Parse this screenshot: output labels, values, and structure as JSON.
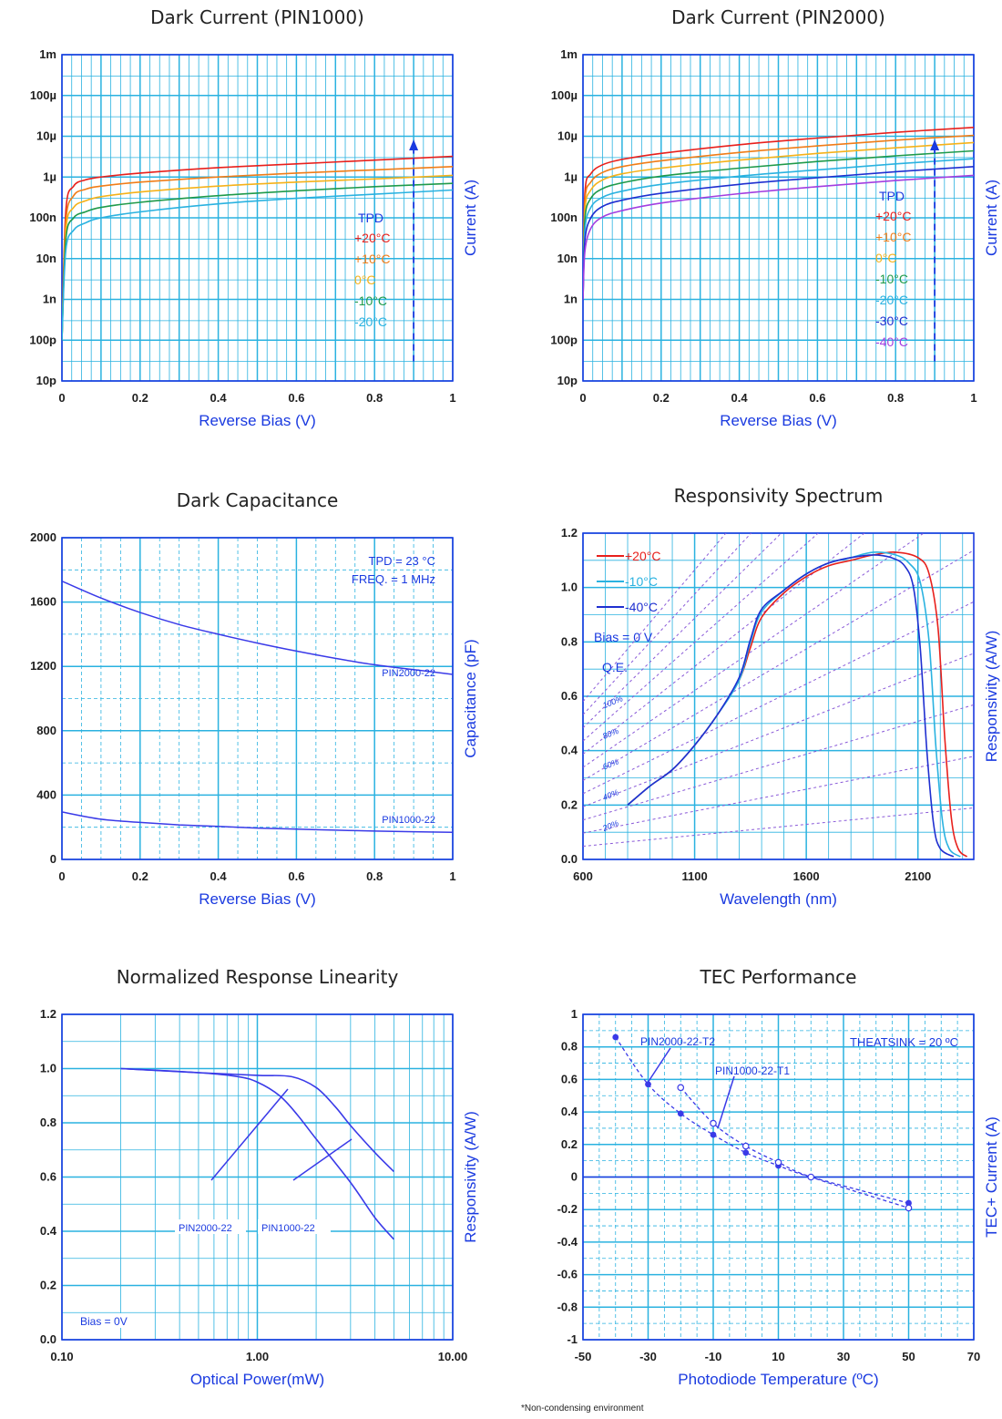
{
  "footnote": "*Non-condensing environment",
  "chart_data": [
    {
      "id": "c1",
      "type": "line",
      "title": "Dark Current (PIN1000)",
      "xlabel": "Reverse Bias (V)",
      "ylabel": "Current (A)",
      "xlim": [
        0,
        1
      ],
      "ylim": [
        1e-11,
        0.001
      ],
      "yscale": "log",
      "grid": true,
      "x_ticks": [
        "0",
        "0.2",
        "0.4",
        "0.6",
        "0.8",
        "1"
      ],
      "y_ticks": [
        "10p",
        "100p",
        "1n",
        "10n",
        "100n",
        "1µ",
        "10µ",
        "100µ",
        "1m"
      ],
      "legend_title": "TPD",
      "arrow_x": 0.9,
      "series": [
        {
          "name": "+20°C",
          "color": "#e8201c",
          "x": [
            0.0,
            0.01,
            0.03,
            0.06,
            0.1,
            0.2,
            0.4,
            0.6,
            0.8,
            1.0
          ],
          "y": [
            1e-10,
            1.5e-07,
            6e-07,
            8.5e-07,
            1e-06,
            1.25e-06,
            1.7e-06,
            2.1e-06,
            2.6e-06,
            3.2e-06
          ]
        },
        {
          "name": "+10°C",
          "color": "#f07d18",
          "x": [
            0.0,
            0.01,
            0.03,
            0.06,
            0.1,
            0.2,
            0.4,
            0.6,
            0.8,
            1.0
          ],
          "y": [
            1e-10,
            8e-08,
            3.5e-07,
            5e-07,
            6e-07,
            7.5e-07,
            1e-06,
            1.25e-06,
            1.5e-06,
            1.8e-06
          ]
        },
        {
          "name": "0°C",
          "color": "#f5b21a",
          "x": [
            0.0,
            0.01,
            0.03,
            0.06,
            0.1,
            0.2,
            0.4,
            0.6,
            0.8,
            1.0
          ],
          "y": [
            1e-10,
            5e-08,
            1.8e-07,
            2.6e-07,
            3.3e-07,
            4.3e-07,
            6e-07,
            7.5e-07,
            9e-07,
            1.1e-06
          ]
        },
        {
          "name": "-10°C",
          "color": "#1f9a4a",
          "x": [
            0.0,
            0.01,
            0.03,
            0.06,
            0.1,
            0.2,
            0.4,
            0.6,
            0.8,
            1.0
          ],
          "y": [
            1e-10,
            3e-08,
            1e-07,
            1.4e-07,
            1.8e-07,
            2.4e-07,
            3.5e-07,
            4.6e-07,
            5.8e-07,
            7e-07
          ]
        },
        {
          "name": "-20°C",
          "color": "#2ab2e0",
          "x": [
            0.0,
            0.01,
            0.03,
            0.06,
            0.1,
            0.2,
            0.4,
            0.6,
            0.8,
            1.0
          ],
          "y": [
            1e-10,
            1.6e-08,
            5e-08,
            7.5e-08,
            1e-07,
            1.4e-07,
            2.2e-07,
            3e-07,
            3.8e-07,
            4.8e-07
          ]
        }
      ]
    },
    {
      "id": "c2",
      "type": "line",
      "title": "Dark Current (PIN2000)",
      "xlabel": "Reverse Bias (V)",
      "ylabel": "Current (A)",
      "xlim": [
        0,
        1
      ],
      "ylim": [
        1e-11,
        0.001
      ],
      "yscale": "log",
      "grid": true,
      "x_ticks": [
        "0",
        "0.2",
        "0.4",
        "0.6",
        "0.8",
        "1"
      ],
      "y_ticks": [
        "10p",
        "100p",
        "1n",
        "10n",
        "100n",
        "1µ",
        "10µ",
        "100µ",
        "1m"
      ],
      "legend_title": "TPD",
      "arrow_x": 0.9,
      "series": [
        {
          "name": "+20°C",
          "color": "#e8201c",
          "x": [
            0.0,
            0.005,
            0.02,
            0.05,
            0.1,
            0.2,
            0.4,
            0.6,
            0.8,
            1.0
          ],
          "y": [
            1e-09,
            4e-07,
            1.2e-06,
            2e-06,
            2.7e-06,
            3.8e-06,
            6.2e-06,
            9e-06,
            1.25e-05,
            1.65e-05
          ]
        },
        {
          "name": "+10°C",
          "color": "#f07d18",
          "x": [
            0.0,
            0.005,
            0.02,
            0.05,
            0.1,
            0.2,
            0.4,
            0.6,
            0.8,
            1.0
          ],
          "y": [
            1e-09,
            2.5e-07,
            7.5e-07,
            1.3e-06,
            1.8e-06,
            2.5e-06,
            4e-06,
            5.8e-06,
            8e-06,
            1.05e-05
          ]
        },
        {
          "name": "0°C",
          "color": "#f5b21a",
          "x": [
            0.0,
            0.005,
            0.02,
            0.05,
            0.1,
            0.2,
            0.4,
            0.6,
            0.8,
            1.0
          ],
          "y": [
            1e-09,
            1.5e-07,
            4.8e-07,
            8.5e-07,
            1.2e-06,
            1.65e-06,
            2.6e-06,
            3.8e-06,
            5.2e-06,
            7e-06
          ]
        },
        {
          "name": "-10°C",
          "color": "#1f9a4a",
          "x": [
            0.0,
            0.005,
            0.02,
            0.05,
            0.1,
            0.2,
            0.4,
            0.6,
            0.8,
            1.0
          ],
          "y": [
            1e-09,
            9e-08,
            3e-07,
            5.2e-07,
            7.2e-07,
            1.05e-06,
            1.65e-06,
            2.4e-06,
            3.3e-06,
            4.4e-06
          ]
        },
        {
          "name": "-20°C",
          "color": "#2ab2e0",
          "x": [
            0.0,
            0.005,
            0.02,
            0.05,
            0.1,
            0.2,
            0.4,
            0.6,
            0.8,
            1.0
          ],
          "y": [
            1e-09,
            5e-08,
            1.8e-07,
            3.2e-07,
            4.5e-07,
            6.6e-07,
            1.05e-06,
            1.5e-06,
            2.1e-06,
            2.8e-06
          ]
        },
        {
          "name": "-30°C",
          "color": "#1f2fd0",
          "x": [
            0.0,
            0.005,
            0.02,
            0.05,
            0.1,
            0.2,
            0.4,
            0.6,
            0.8,
            1.0
          ],
          "y": [
            1e-09,
            2.8e-08,
            1e-07,
            1.9e-07,
            2.7e-07,
            4e-07,
            6.6e-07,
            9.6e-07,
            1.35e-06,
            1.8e-06
          ]
        },
        {
          "name": "-40°C",
          "color": "#a23ee0",
          "x": [
            0.0,
            0.005,
            0.02,
            0.05,
            0.1,
            0.2,
            0.4,
            0.6,
            0.8,
            1.0
          ],
          "y": [
            1e-09,
            1.5e-08,
            5.5e-08,
            1.05e-07,
            1.5e-07,
            2.3e-07,
            3.9e-07,
            5.8e-07,
            8.2e-07,
            1.1e-06
          ]
        }
      ]
    },
    {
      "id": "c3",
      "type": "line",
      "title": "Dark Capacitance",
      "xlabel": "Reverse Bias (V)",
      "ylabel": "Capacitance (pF)",
      "xlim": [
        0,
        1
      ],
      "ylim": [
        0,
        2000
      ],
      "grid": true,
      "x_ticks": [
        "0",
        "0.2",
        "0.4",
        "0.6",
        "0.8",
        "1"
      ],
      "y_ticks": [
        "0",
        "400",
        "800",
        "1200",
        "1600",
        "2000"
      ],
      "annotations": [
        "TPD = 23 °C",
        "FREQ. = 1 MHz"
      ],
      "series": [
        {
          "name": "PIN2000-22",
          "color": "#3a3ae8",
          "x": [
            0,
            0.1,
            0.2,
            0.3,
            0.4,
            0.5,
            0.6,
            0.7,
            0.8,
            0.9,
            1.0
          ],
          "y": [
            1730,
            1625,
            1535,
            1460,
            1400,
            1345,
            1295,
            1250,
            1210,
            1180,
            1150
          ]
        },
        {
          "name": "PIN1000-22",
          "color": "#3a3ae8",
          "x": [
            0,
            0.1,
            0.2,
            0.3,
            0.4,
            0.5,
            0.6,
            0.7,
            0.8,
            0.9,
            1.0
          ],
          "y": [
            295,
            250,
            230,
            215,
            205,
            195,
            188,
            182,
            176,
            172,
            168
          ]
        }
      ]
    },
    {
      "id": "c4",
      "type": "line",
      "title": "Responsivity Spectrum",
      "xlabel": "Wavelength (nm)",
      "ylabel": "Responsivity (A/W)",
      "xlim": [
        600,
        2350
      ],
      "ylim": [
        0,
        1.2
      ],
      "grid": true,
      "x_ticks": [
        "600",
        "1100",
        "1600",
        "2100"
      ],
      "y_ticks": [
        "0.0",
        "0.2",
        "0.4",
        "0.6",
        "0.8",
        "1.0",
        "1.2"
      ],
      "annotations": [
        "Bias = 0 V",
        "Q.E."
      ],
      "qe_lines": [
        {
          "label": "",
          "value": 1.2
        },
        {
          "label": "",
          "value": 1.1
        },
        {
          "label": "100%",
          "value": 1.0
        },
        {
          "label": "",
          "value": 0.9
        },
        {
          "label": "80%",
          "value": 0.8
        },
        {
          "label": "",
          "value": 0.7
        },
        {
          "label": "60%",
          "value": 0.6
        },
        {
          "label": "",
          "value": 0.5
        },
        {
          "label": "40%",
          "value": 0.4
        },
        {
          "label": "",
          "value": 0.3
        },
        {
          "label": "20%",
          "value": 0.2
        },
        {
          "label": "",
          "value": 0.1
        }
      ],
      "series": [
        {
          "name": "+20°C",
          "color": "#e8201c",
          "x": [
            800,
            900,
            1000,
            1100,
            1200,
            1300,
            1350,
            1400,
            1500,
            1600,
            1700,
            1800,
            1900,
            2000,
            2100,
            2150,
            2190,
            2220,
            2250,
            2280,
            2320
          ],
          "y": [
            0.2,
            0.27,
            0.33,
            0.42,
            0.53,
            0.66,
            0.78,
            0.89,
            0.98,
            1.04,
            1.08,
            1.1,
            1.12,
            1.13,
            1.11,
            1.05,
            0.85,
            0.45,
            0.15,
            0.04,
            0.01
          ]
        },
        {
          "name": "-10°C",
          "color": "#2ab2e0",
          "x": [
            800,
            900,
            1000,
            1100,
            1200,
            1300,
            1350,
            1400,
            1500,
            1600,
            1700,
            1800,
            1900,
            2000,
            2060,
            2110,
            2150,
            2180,
            2210,
            2240,
            2290
          ],
          "y": [
            0.2,
            0.27,
            0.33,
            0.42,
            0.53,
            0.66,
            0.8,
            0.91,
            0.99,
            1.05,
            1.09,
            1.11,
            1.13,
            1.12,
            1.09,
            1.02,
            0.8,
            0.42,
            0.14,
            0.04,
            0.01
          ]
        },
        {
          "name": "-40°C",
          "color": "#1f2fd0",
          "x": [
            800,
            900,
            1000,
            1100,
            1200,
            1300,
            1350,
            1400,
            1500,
            1600,
            1700,
            1800,
            1900,
            1980,
            2040,
            2080,
            2110,
            2140,
            2170,
            2200,
            2260
          ],
          "y": [
            0.2,
            0.27,
            0.33,
            0.42,
            0.53,
            0.67,
            0.81,
            0.92,
            0.99,
            1.05,
            1.09,
            1.11,
            1.12,
            1.11,
            1.08,
            1.0,
            0.78,
            0.4,
            0.13,
            0.04,
            0.01
          ]
        }
      ]
    },
    {
      "id": "c5",
      "type": "line",
      "title": "Normalized Response Linearity",
      "xlabel": "Optical Power(mW)",
      "ylabel": "Responsivity (A/W)",
      "xlim": [
        0.1,
        10
      ],
      "xscale": "log",
      "ylim": [
        0,
        1.2
      ],
      "grid": true,
      "x_ticks": [
        "0.10",
        "1.00",
        "10.00"
      ],
      "y_ticks": [
        "0.0",
        "0.2",
        "0.4",
        "0.6",
        "0.8",
        "1.0",
        "1.2"
      ],
      "annotations": [
        "Bias = 0V"
      ],
      "series": [
        {
          "name": "PIN1000-22",
          "color": "#3a3ae8",
          "x": [
            0.2,
            0.5,
            1.0,
            1.5,
            2.0,
            2.5,
            3.0,
            4.0,
            5.0
          ],
          "y": [
            1.0,
            0.985,
            0.975,
            0.97,
            0.93,
            0.86,
            0.79,
            0.69,
            0.62
          ]
        },
        {
          "name": "PIN2000-22",
          "color": "#3a3ae8",
          "x": [
            0.2,
            0.5,
            0.8,
            1.0,
            1.3,
            1.6,
            2.0,
            3.0,
            4.0,
            5.0
          ],
          "y": [
            1.0,
            0.985,
            0.97,
            0.95,
            0.9,
            0.83,
            0.74,
            0.58,
            0.45,
            0.37
          ]
        }
      ]
    },
    {
      "id": "c6",
      "type": "scatter",
      "title": "TEC Performance",
      "xlabel": "Photodiode Temperature (ºC)",
      "ylabel": "TEC+ Current (A)",
      "xlim": [
        -50,
        70
      ],
      "ylim": [
        -1,
        1
      ],
      "grid": true,
      "x_ticks": [
        "-50",
        "-30",
        "-10",
        "10",
        "30",
        "50",
        "70"
      ],
      "y_ticks": [
        "-1",
        "-0.8",
        "-0.6",
        "-0.4",
        "-0.2",
        "0",
        "0.2",
        "0.4",
        "0.6",
        "0.8",
        "1"
      ],
      "annotations": [
        "THEATSINK = 20 ºC"
      ],
      "series": [
        {
          "name": "PIN2000-22-T2",
          "color": "#3a3ae8",
          "x": [
            -40,
            -30,
            -20,
            -10,
            0,
            10,
            20,
            50
          ],
          "y": [
            0.86,
            0.57,
            0.39,
            0.26,
            0.15,
            0.07,
            0.0,
            -0.16
          ]
        },
        {
          "name": "PIN1000-22-T1",
          "color": "#3a3ae8",
          "x": [
            -20,
            -10,
            0,
            10,
            20,
            50
          ],
          "y": [
            0.55,
            0.33,
            0.19,
            0.09,
            0.0,
            -0.19
          ]
        }
      ]
    }
  ]
}
